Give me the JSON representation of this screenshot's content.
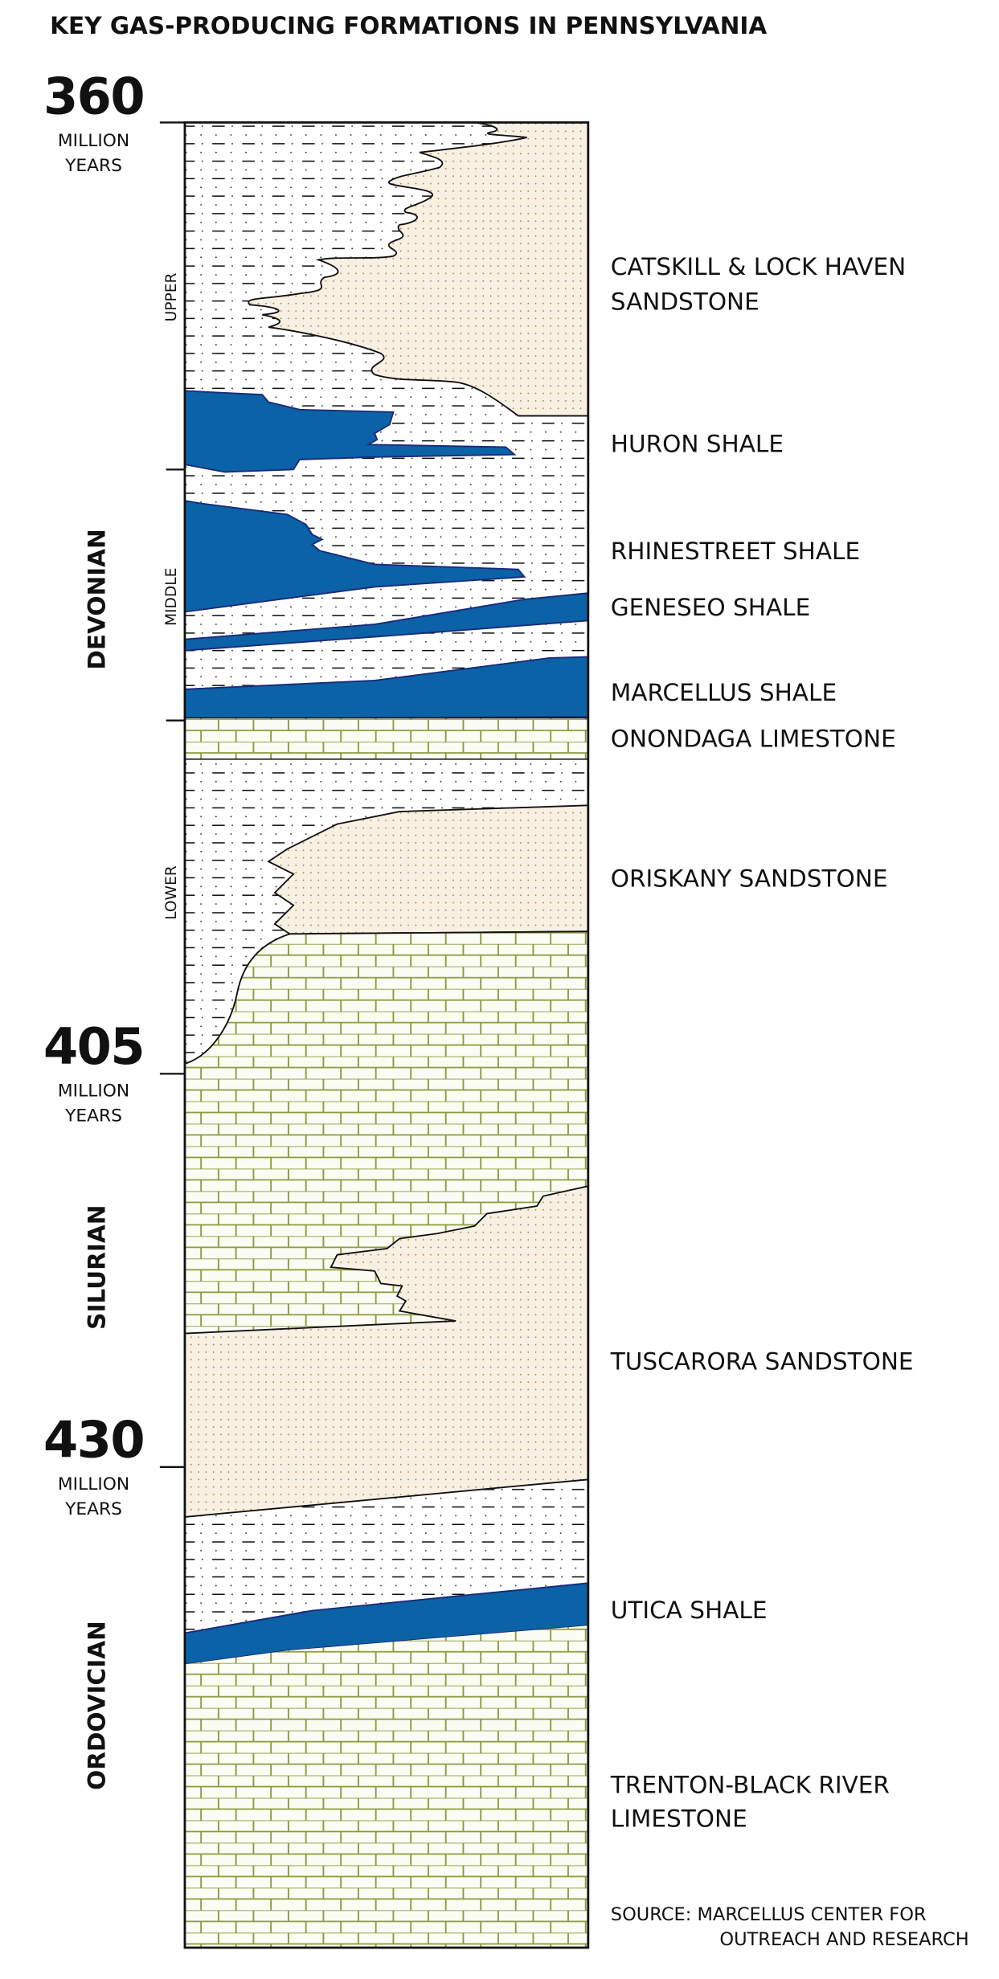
{
  "title": "KEY GAS-PRODUCING FORMATIONS IN PENNSYLVANIA",
  "time_markers": [
    {
      "value": "360",
      "line1": "MILLION",
      "line2": "YEARS"
    },
    {
      "value": "405",
      "line1": "MILLION",
      "line2": "YEARS"
    },
    {
      "value": "430",
      "line1": "MILLION",
      "line2": "YEARS"
    }
  ],
  "periods": [
    "DEVONIAN",
    "SILURIAN",
    "ORDOVICIAN"
  ],
  "epochs": [
    "UPPER",
    "MIDDLE",
    "LOWER"
  ],
  "formations": [
    {
      "line1": "CATSKILL & LOCK HAVEN",
      "line2": "SANDSTONE",
      "type": "sandstone"
    },
    {
      "line1": "HURON SHALE",
      "type": "gas shale"
    },
    {
      "line1": "RHINESTREET SHALE",
      "type": "gas shale"
    },
    {
      "line1": "GENESEO SHALE",
      "type": "gas shale"
    },
    {
      "line1": "MARCELLUS SHALE",
      "type": "gas shale"
    },
    {
      "line1": "ONONDAGA LIMESTONE",
      "type": "limestone"
    },
    {
      "line1": "ORISKANY SANDSTONE",
      "type": "sandstone"
    },
    {
      "line1": "TUSCARORA SANDSTONE",
      "type": "sandstone"
    },
    {
      "line1": "UTICA SHALE",
      "type": "gas shale"
    },
    {
      "line1": "TRENTON-BLACK RIVER",
      "line2": "LIMESTONE",
      "type": "limestone"
    }
  ],
  "source": {
    "line1": "SOURCE: MARCELLUS CENTER FOR",
    "line2": "OUTREACH AND RESEARCH"
  },
  "colors": {
    "gas_shale": "#0b62a6",
    "sandstone": "#f8f1e3",
    "limestone_lines": "#8c9a3c",
    "shale_background": "#ffffff"
  }
}
